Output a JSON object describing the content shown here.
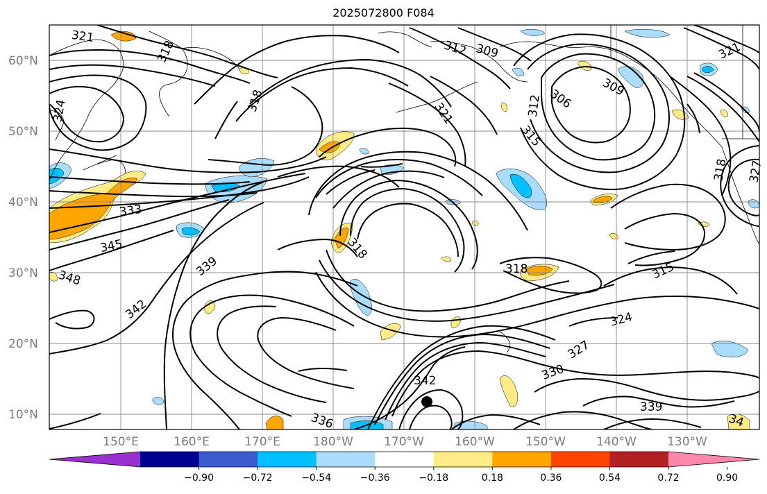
{
  "title": "2025072800 F084",
  "lat_labels": [
    "60°N",
    "50°N",
    "40°N",
    "30°N",
    "20°N",
    "10°N"
  ],
  "lon_labels": [
    "150°E",
    "160°E",
    "170°E",
    "180°W",
    "170°W",
    "160°W",
    "150°W",
    "140°W",
    "130°W"
  ],
  "colorbar": {
    "colors": [
      "#9b30d0",
      "#000090",
      "#3a5ccc",
      "#00bfff",
      "#aadcff",
      "#ffffff",
      "#ffec88",
      "#ffa500",
      "#ff4500",
      "#b22222",
      "#ff88aa"
    ],
    "tick_labels": [
      "−0.90",
      "−0.72",
      "−0.54",
      "−0.36",
      "−0.18",
      "0.18",
      "0.36",
      "0.54",
      "0.72",
      "0.90"
    ]
  },
  "contour_labels": [
    "321",
    "318",
    "312",
    "309",
    "321",
    "324",
    "318",
    "306",
    "312",
    "309",
    "321",
    "315",
    "318",
    "327",
    "333",
    "345",
    "348",
    "339",
    "342",
    "318",
    "318",
    "315",
    "324",
    "327",
    "330",
    "342",
    "336",
    "339",
    "34"
  ]
}
